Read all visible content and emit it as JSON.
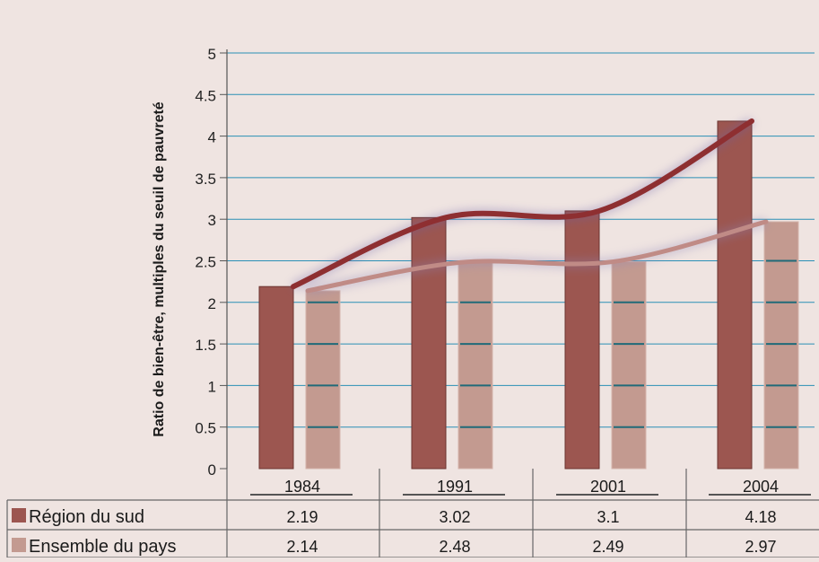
{
  "chart_data": {
    "type": "bar",
    "ylabel": "Ratio de bien-être, multiples du seuil de pauvreté",
    "ylim": [
      0,
      5
    ],
    "yticks": [
      "0",
      "0.5",
      "1",
      "1.5",
      "2",
      "2.5",
      "3",
      "3.5",
      "4",
      "4.5",
      "5"
    ],
    "categories": [
      "1984",
      "1991",
      "2001",
      "2004"
    ],
    "series": [
      {
        "name": "Région du sud",
        "values": [
          2.19,
          3.02,
          3.1,
          4.18
        ],
        "labels": [
          "2.19",
          "3.02",
          "3.1",
          "4.18"
        ],
        "color": "#9c5650"
      },
      {
        "name": "Ensemble du pays",
        "values": [
          2.14,
          2.48,
          2.49,
          2.97
        ],
        "labels": [
          "2.14",
          "2.48",
          "2.49",
          "2.97"
        ],
        "color": "#c39a90"
      }
    ],
    "trend_colors": [
      "#8e2f31",
      "#c08b86"
    ],
    "grid": true,
    "gridline_color": "#2a8fb5",
    "legend": "data-table-below"
  }
}
